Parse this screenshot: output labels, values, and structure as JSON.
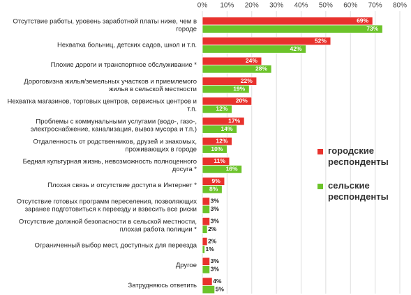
{
  "chart_data": {
    "type": "bar",
    "orientation": "horizontal",
    "categories": [
      "Отсутствие работы, уровень заработной платы ниже, чем в\nгороде",
      "Нехватка больниц, детских садов, школ и т.п.",
      "Плохие дороги и транспортное обслуживание *",
      "Дороговизна жилья/земельных участков и приемлемого\nжилья в сельской местности",
      "Нехватка магазинов, торговых центров, сервисных центров и\nт.п.",
      "Проблемы с коммунальными услугами (водо-, газо-,\nэлектроснабжение, канализация, вывоз мусора и т.п.)",
      "Отдаленность от родственников, друзей и знакомых,\nпроживающих в городе",
      "Бедная культурная жизнь, невозможность полноценного\nдосуга *",
      "Плохая связь и отсутствие доступа в Интернет *",
      "Отсутствие готовых программ переселения, позволяющих\nзаранее подготовиться к переезду и взвесить все риски",
      "Отсутствие должной безопасности в сельской местности,\nплохая работа полиции *",
      "Ограниченный выбор мест, доступных для переезда",
      "Другое",
      "Затрудняюсь ответить"
    ],
    "series": [
      {
        "name": "городские\nреспонденты",
        "color": "#e8322d",
        "values": [
          69,
          52,
          24,
          22,
          20,
          17,
          12,
          11,
          9,
          3,
          3,
          2,
          3,
          4
        ],
        "value_labels": [
          "69%",
          "52%",
          "24%",
          "22%",
          "20%",
          "17%",
          "12%",
          "11%",
          "9%",
          "3%",
          "3%",
          "2%",
          "3%",
          "4%"
        ]
      },
      {
        "name": "сельские\nреспонденты",
        "color": "#6cc32a",
        "values": [
          73,
          42,
          28,
          19,
          12,
          14,
          10,
          16,
          8,
          3,
          2,
          1,
          3,
          5
        ],
        "value_labels": [
          "73%",
          "42%",
          "28%",
          "19%",
          "12%",
          "14%",
          "10%",
          "16%",
          "8%",
          "3%",
          "2%",
          "1%",
          "3%",
          "5%"
        ]
      }
    ],
    "xlim": [
      0,
      80
    ],
    "xticks": [
      {
        "value": 0,
        "label": "0%"
      },
      {
        "value": 10,
        "label": "10%"
      },
      {
        "value": 20,
        "label": "20%"
      },
      {
        "value": 30,
        "label": "30%"
      },
      {
        "value": 40,
        "label": "40%"
      },
      {
        "value": 50,
        "label": "50%"
      },
      {
        "value": 60,
        "label": "60%"
      },
      {
        "value": 70,
        "label": "70%"
      },
      {
        "value": 80,
        "label": "80%"
      }
    ],
    "grid": true
  }
}
